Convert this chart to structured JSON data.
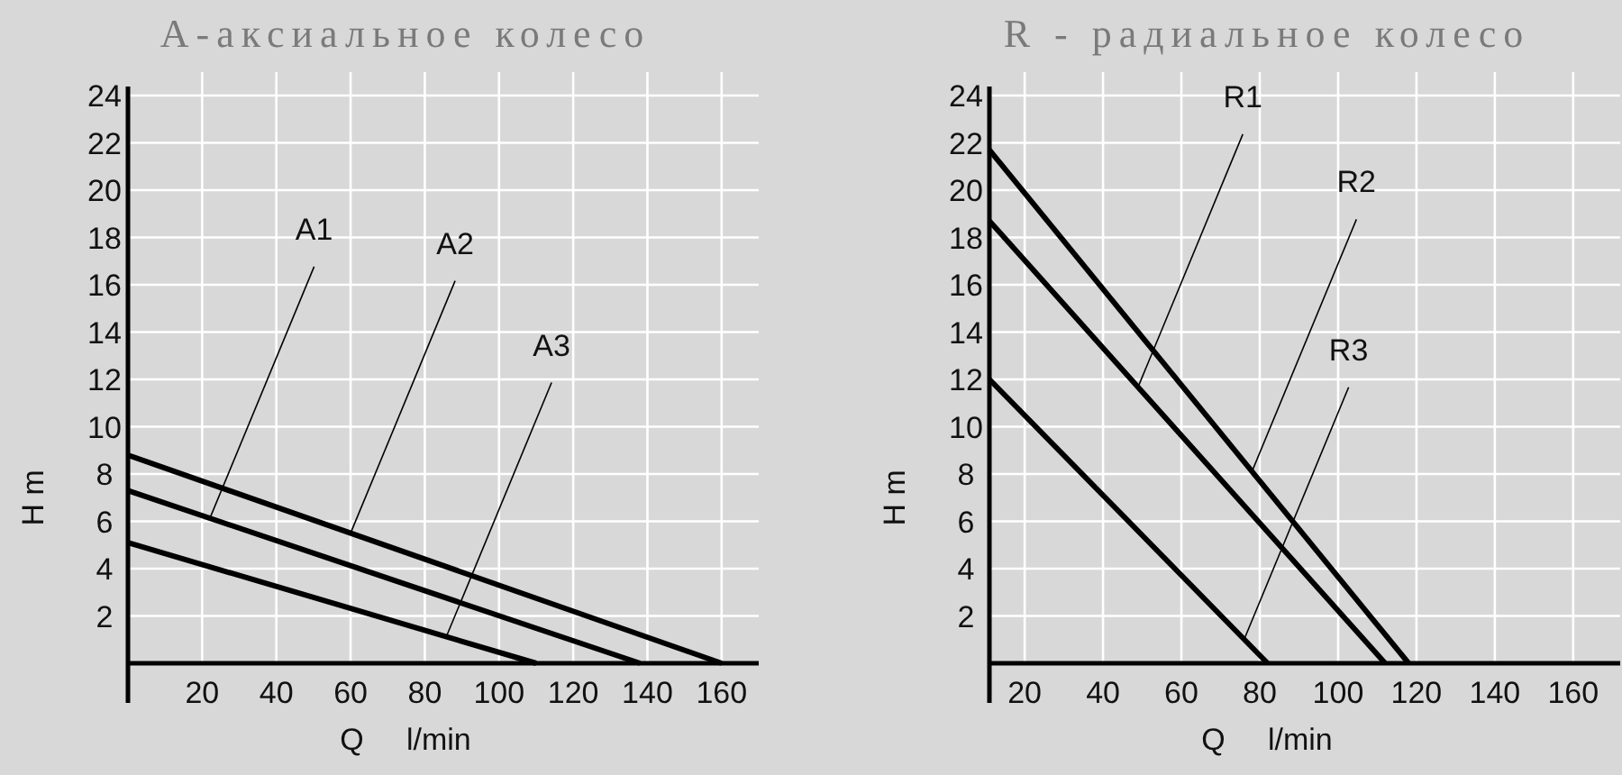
{
  "chart_data": [
    {
      "type": "line",
      "title": "А-аксиальное колесо",
      "xlabel": "Q     l/min",
      "ylabel": "H m",
      "xlim": [
        0,
        170
      ],
      "ylim": [
        0,
        24
      ],
      "xticks": [
        20,
        40,
        60,
        80,
        100,
        120,
        140,
        160
      ],
      "yticks": [
        2,
        4,
        6,
        8,
        10,
        12,
        14,
        16,
        18,
        20,
        22,
        24
      ],
      "grid": true,
      "marker": "none",
      "line_style": "solid",
      "series": [
        {
          "color": "#000000",
          "x": [
            0,
            160
          ],
          "values": [
            8.8,
            0
          ]
        },
        {
          "color": "#000000",
          "x": [
            0,
            138
          ],
          "values": [
            7.3,
            0
          ]
        },
        {
          "color": "#000000",
          "x": [
            0,
            110
          ],
          "values": [
            5.1,
            0
          ]
        }
      ],
      "annotations": [
        {
          "text": "A1",
          "x": 22,
          "y": 6.1
        },
        {
          "text": "A2",
          "x": 60,
          "y": 5.5
        },
        {
          "text": "A3",
          "x": 86,
          "y": 1.2
        }
      ]
    },
    {
      "type": "line",
      "title": "R - радиальное колесо",
      "xlabel": "Q     l/min",
      "ylabel": "H m",
      "xlim": [
        11,
        172
      ],
      "ylim": [
        0,
        24
      ],
      "xticks": [
        20,
        40,
        60,
        80,
        100,
        120,
        140,
        160
      ],
      "yticks": [
        2,
        4,
        6,
        8,
        10,
        12,
        14,
        16,
        18,
        20,
        22,
        24
      ],
      "grid": true,
      "marker": "none",
      "line_style": "solid",
      "series": [
        {
          "color": "#000000",
          "x": [
            11,
            118
          ],
          "values": [
            21.7,
            0
          ]
        },
        {
          "color": "#000000",
          "x": [
            11,
            112
          ],
          "values": [
            18.7,
            0
          ]
        },
        {
          "color": "#000000",
          "x": [
            11,
            82
          ],
          "values": [
            12,
            0
          ]
        }
      ],
      "annotations": [
        {
          "text": "R1",
          "x": 49,
          "y": 11.7
        },
        {
          "text": "R2",
          "x": 78,
          "y": 8.1
        },
        {
          "text": "R3",
          "x": 76,
          "y": 1
        }
      ]
    }
  ]
}
